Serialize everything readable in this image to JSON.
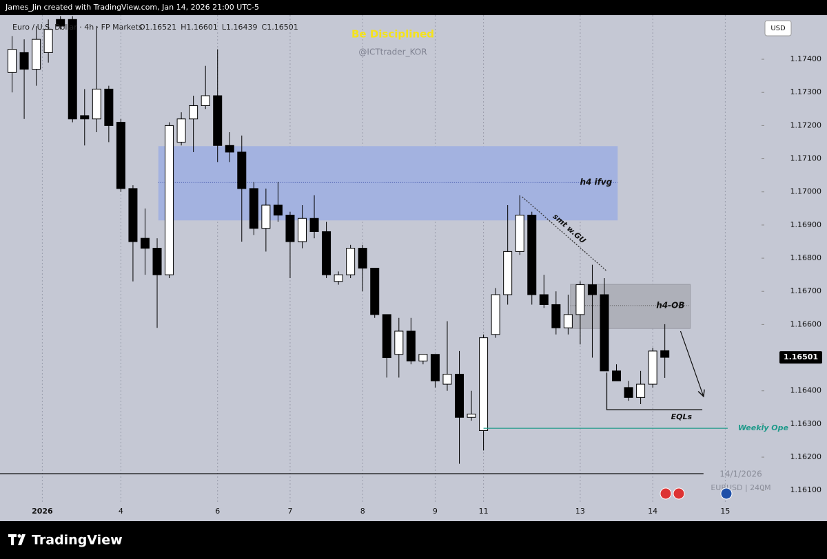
{
  "chart_data": {
    "type": "candlestick",
    "header": "James_Jin created with TradingView.com, Jan 14, 2026 21:00 UTC-5",
    "symbol": "Euro / U.S. Dollar · 4h · FP Markets",
    "ohlc_labels": [
      "O1.16521",
      "H1.16601",
      "L1.16439",
      "C1.16501"
    ],
    "title": "Be Disciplined",
    "subtitle": "@ICTtrader_KOR",
    "currency": "USD",
    "up_color": "#ffffff",
    "down_color": "#000000",
    "background": "#c5c8d4",
    "open": [
      1.1736,
      1.1742,
      1.1737,
      1.1742,
      1.1752,
      1.1752,
      1.1723,
      1.1722,
      1.1731,
      1.1721,
      1.1701,
      1.1686,
      1.1683,
      1.1675,
      1.1715,
      1.1722,
      1.1726,
      1.1729,
      1.1714,
      1.1712,
      1.1701,
      1.1689,
      1.1696,
      1.1693,
      1.1685,
      1.1692,
      1.1688,
      1.1673,
      1.1675,
      1.1683,
      1.1677,
      1.1663,
      1.1651,
      1.1658,
      1.1649,
      1.1651,
      1.1642,
      1.1645,
      1.1632,
      1.1628,
      1.1657,
      1.1669,
      1.1682,
      1.1693,
      1.1669,
      1.1666,
      1.1659,
      1.1663,
      1.1672,
      1.1669,
      1.1646,
      1.1641,
      1.1638,
      1.1642,
      1.16521
    ],
    "high": [
      1.1747,
      1.1746,
      1.175,
      1.1752,
      1.1753,
      1.1753,
      1.1731,
      1.175,
      1.1732,
      1.1722,
      1.1702,
      1.1695,
      1.1686,
      1.1721,
      1.1724,
      1.1729,
      1.1738,
      1.1743,
      1.1718,
      1.1717,
      1.1703,
      1.1701,
      1.1703,
      1.1694,
      1.1696,
      1.1699,
      1.1691,
      1.1676,
      1.1684,
      1.1684,
      1.1677,
      1.1663,
      1.1662,
      1.1662,
      1.1651,
      1.1651,
      1.1661,
      1.1652,
      1.164,
      1.1657,
      1.1671,
      1.1696,
      1.1699,
      1.1694,
      1.1675,
      1.167,
      1.1669,
      1.1673,
      1.1678,
      1.1674,
      1.1648,
      1.1643,
      1.1646,
      1.1653,
      1.16601
    ],
    "low": [
      1.173,
      1.1722,
      1.1732,
      1.1739,
      1.1749,
      1.1721,
      1.1714,
      1.1718,
      1.1715,
      1.17,
      1.1673,
      1.1675,
      1.1659,
      1.1674,
      1.1714,
      1.1712,
      1.1725,
      1.1709,
      1.1709,
      1.1685,
      1.1687,
      1.1682,
      1.1691,
      1.1674,
      1.1683,
      1.1686,
      1.1674,
      1.1672,
      1.1674,
      1.167,
      1.1662,
      1.1644,
      1.1644,
      1.1648,
      1.1648,
      1.1641,
      1.164,
      1.1618,
      1.1631,
      1.1622,
      1.1656,
      1.1666,
      1.1681,
      1.1666,
      1.1665,
      1.1657,
      1.1657,
      1.1654,
      1.165,
      1.1646,
      1.1643,
      1.1637,
      1.1636,
      1.1641,
      1.16439
    ],
    "close": [
      1.1743,
      1.1737,
      1.1746,
      1.1749,
      1.175,
      1.1722,
      1.1722,
      1.1731,
      1.172,
      1.1701,
      1.1685,
      1.1683,
      1.1675,
      1.172,
      1.1722,
      1.1726,
      1.1729,
      1.1714,
      1.1712,
      1.1701,
      1.1689,
      1.1696,
      1.1693,
      1.1685,
      1.1692,
      1.1688,
      1.1675,
      1.1675,
      1.1683,
      1.1677,
      1.1663,
      1.165,
      1.1658,
      1.1649,
      1.1651,
      1.1643,
      1.1645,
      1.1632,
      1.1633,
      1.1656,
      1.1669,
      1.1682,
      1.1693,
      1.1669,
      1.1666,
      1.1659,
      1.1663,
      1.1672,
      1.1669,
      1.1646,
      1.1643,
      1.1638,
      1.1642,
      1.1652,
      1.16501
    ],
    "xlim": [
      -1,
      62
    ],
    "xticks": [
      {
        "value": 2.5,
        "label": "2026"
      },
      {
        "value": 9,
        "label": "4"
      },
      {
        "value": 17,
        "label": "6"
      },
      {
        "value": 23,
        "label": "7"
      },
      {
        "value": 29,
        "label": "8"
      },
      {
        "value": 35,
        "label": "9"
      },
      {
        "value": 39,
        "label": "11"
      },
      {
        "value": 47,
        "label": "13"
      },
      {
        "value": 53,
        "label": "14"
      },
      {
        "value": 59,
        "label": "15"
      }
    ],
    "grid": "x",
    "ylim": [
      1.16007,
      1.17533
    ],
    "yticks": [
      {
        "value": 1.161,
        "label": "1.16100"
      },
      {
        "value": 1.162,
        "label": "1.16200"
      },
      {
        "value": 1.163,
        "label": "1.16300"
      },
      {
        "value": 1.164,
        "label": "1.16400"
      },
      {
        "value": 1.166,
        "label": "1.16600"
      },
      {
        "value": 1.167,
        "label": "1.16700"
      },
      {
        "value": 1.168,
        "label": "1.16800"
      },
      {
        "value": 1.169,
        "label": "1.16900"
      },
      {
        "value": 1.17,
        "label": "1.17000"
      },
      {
        "value": 1.171,
        "label": "1.17100"
      },
      {
        "value": 1.172,
        "label": "1.17200"
      },
      {
        "value": 1.173,
        "label": "1.17300"
      },
      {
        "value": 1.174,
        "label": "1.17400"
      }
    ],
    "last_price": {
      "value": 1.16501,
      "label": "1.16501"
    },
    "zones": [
      {
        "label": "h4 ifvg",
        "x": [
          12.1,
          50.1
        ],
        "top": 1.17138,
        "bottom": 1.16914,
        "mid": 1.17028,
        "color": "#a3b2e0"
      },
      {
        "label": "h4-OB",
        "x": [
          46.2,
          56.1
        ],
        "top": 1.16721,
        "bottom": 1.16588,
        "mid": 1.16657,
        "color": "#aeb0b9"
      }
    ],
    "lines": [
      {
        "label": "smt w.GU",
        "x": [
          42.2,
          49.2
        ],
        "prices": [
          1.16985,
          1.16761
        ],
        "color": "#333333",
        "style": "dotted"
      },
      {
        "label": "EQLs",
        "x": [
          49.2,
          49.2,
          57.1
        ],
        "prices": [
          1.16455,
          1.16343,
          1.16343
        ],
        "color": "#111111",
        "style": "solid"
      },
      {
        "label": "Weekly Ope",
        "x": [
          39,
          59.2
        ],
        "prices": [
          1.16287,
          1.16287
        ],
        "color": "#1f9a8a",
        "style": "solid"
      },
      {
        "x": [
          -1,
          57.2
        ],
        "prices": [
          1.1615,
          1.1615
        ],
        "color": "#000000",
        "style": "solid"
      },
      {
        "x": [
          55.3,
          57.2
        ],
        "prices": [
          1.1658,
          1.16383
        ],
        "color": "#111111",
        "style": "arrow"
      }
    ],
    "watermark": [
      "14/1/2026",
      "EURUSD | 240M"
    ],
    "brand": "TradingView"
  }
}
